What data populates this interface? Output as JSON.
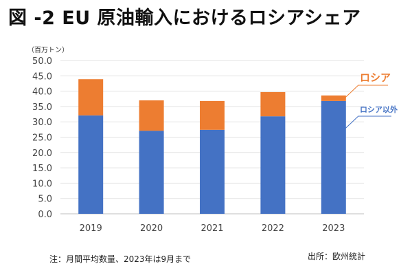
{
  "title": "図 -2 EU 原油輸入におけるロシアシェア",
  "unit": "（百万トン）",
  "note": "注：月間平均数量、2023年は9月まで",
  "source": "出所：欧州統計",
  "chart_data": {
    "type": "bar",
    "stacked": true,
    "title": "図 -2 EU 原油輸入におけるロシアシェア",
    "ylabel": "（百万トン）",
    "xlabel": "",
    "categories": [
      "2019",
      "2020",
      "2021",
      "2022",
      "2023"
    ],
    "series": [
      {
        "name": "ロシア以外",
        "color": "#4472C4",
        "values": [
          32.1,
          27.1,
          27.4,
          31.8,
          36.8
        ]
      },
      {
        "name": "ロシア",
        "color": "#ED7D31",
        "values": [
          11.8,
          9.9,
          9.4,
          7.9,
          1.8
        ]
      }
    ],
    "ylim": [
      0,
      50
    ],
    "yticks": [
      "0.0",
      "5.0",
      "10.0",
      "15.0",
      "20.0",
      "25.0",
      "30.0",
      "35.0",
      "40.0",
      "45.0",
      "50.0"
    ],
    "grid": true,
    "legend": "right (callout labels)"
  }
}
